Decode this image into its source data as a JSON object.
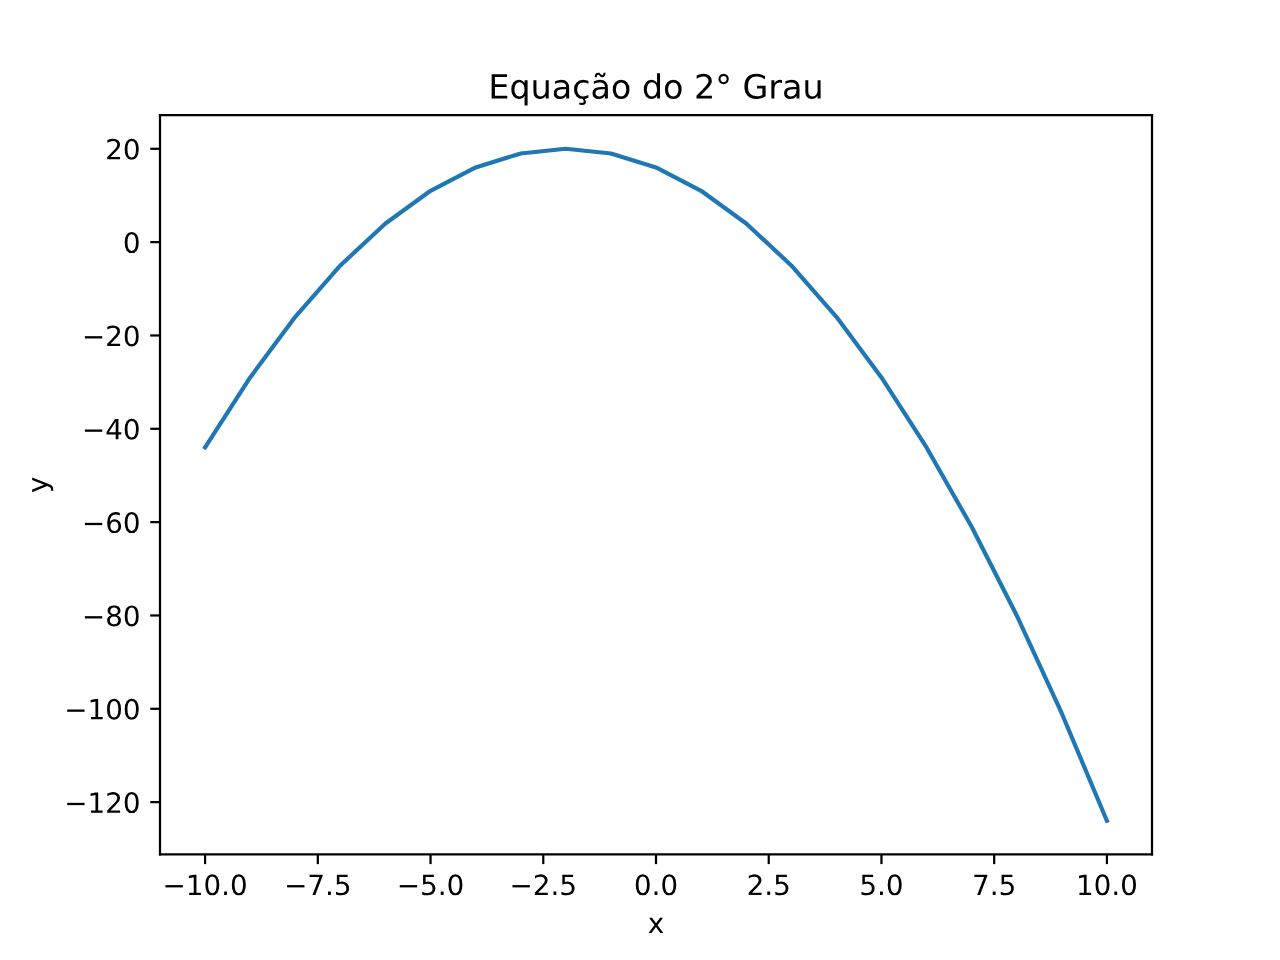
{
  "chart_data": {
    "type": "line",
    "title": "Equação do 2° Grau",
    "xlabel": "x",
    "ylabel": "y",
    "x": [
      -10,
      -9,
      -8,
      -7,
      -6,
      -5,
      -4,
      -3,
      -2,
      -1,
      0,
      1,
      2,
      3,
      4,
      5,
      6,
      7,
      8,
      9,
      10
    ],
    "series": [
      {
        "color": "#1f77b4",
        "values": [
          -44,
          -29,
          -16,
          -5,
          4,
          11,
          16,
          19,
          20,
          19,
          16,
          11,
          4,
          -5,
          -16,
          -29,
          -44,
          -61,
          -80,
          -101,
          -124
        ]
      }
    ],
    "xlim": [
      -11,
      11
    ],
    "ylim": [
      -131.2,
      27.2
    ],
    "xticks": [
      {
        "value": -10,
        "label": "−10.0"
      },
      {
        "value": -7.5,
        "label": "−7.5"
      },
      {
        "value": -5,
        "label": "−5.0"
      },
      {
        "value": -2.5,
        "label": "−2.5"
      },
      {
        "value": 0,
        "label": "0.0"
      },
      {
        "value": 2.5,
        "label": "2.5"
      },
      {
        "value": 5,
        "label": "5.0"
      },
      {
        "value": 7.5,
        "label": "7.5"
      },
      {
        "value": 10,
        "label": "10.0"
      }
    ],
    "yticks": [
      {
        "value": -120,
        "label": "−120"
      },
      {
        "value": -100,
        "label": "−100"
      },
      {
        "value": -80,
        "label": "−80"
      },
      {
        "value": -60,
        "label": "−60"
      },
      {
        "value": -40,
        "label": "−40"
      },
      {
        "value": -20,
        "label": "−20"
      },
      0,
      20
    ],
    "grid": false,
    "legend": false,
    "marker": "none",
    "line_style": "solid"
  }
}
